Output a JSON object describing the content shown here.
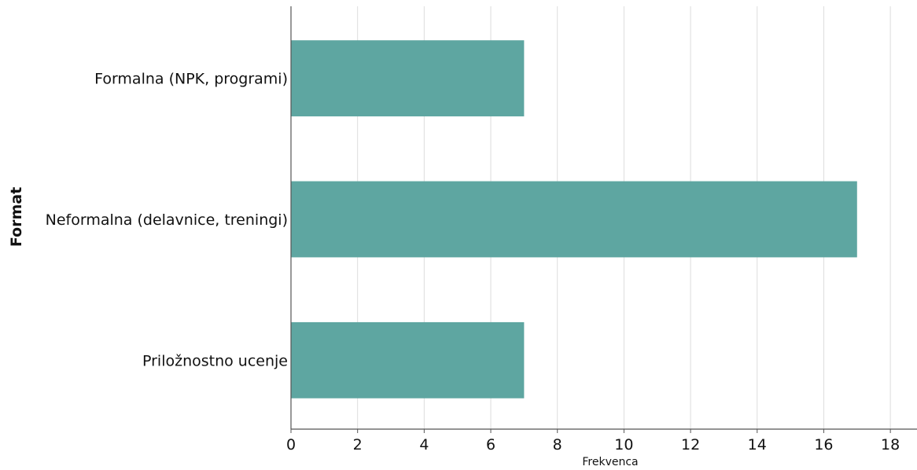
{
  "chart_data": {
    "type": "bar",
    "orientation": "horizontal",
    "categories": [
      "Formalna (NPK, programi)",
      "Neformalna (delavnice, treningi)",
      "Priložnostno ucenje"
    ],
    "values": [
      7,
      17,
      7
    ],
    "xlabel": "Frekvenca",
    "ylabel": "Format",
    "xlim": [
      0,
      18.8
    ],
    "xticks": [
      0,
      2,
      4,
      6,
      8,
      10,
      12,
      14,
      16,
      18
    ],
    "grid": "vertical",
    "bar_color": "#5ea6a1",
    "grid_color": "#dddddd",
    "axis_color": "#555555"
  }
}
